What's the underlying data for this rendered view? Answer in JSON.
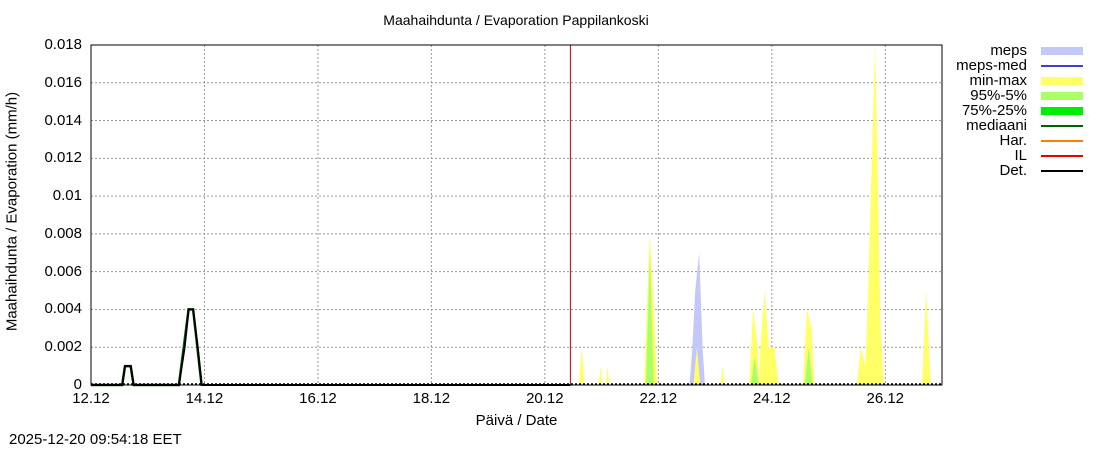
{
  "chart_data": {
    "type": "area",
    "title": "Maahaihdunta / Evaporation  Pappilankoski",
    "xlabel": "Päivä / Date",
    "ylabel": "Maahaihdunta / Evaporation (mm/h)",
    "ylim": [
      0,
      0.018
    ],
    "xlim_days": [
      12,
      27
    ],
    "grid": true,
    "legend_position": "right",
    "x_tick_labels": [
      "12.12",
      "14.12",
      "16.12",
      "18.12",
      "20.12",
      "22.12",
      "24.12",
      "26.12"
    ],
    "y_tick_labels": [
      "0",
      "0.002",
      "0.004",
      "0.006",
      "0.008",
      "0.01",
      "0.012",
      "0.014",
      "0.016",
      "0.018"
    ],
    "forecast_start_line": {
      "name": "IL",
      "x_day": 20.45,
      "color": "#cc0000"
    },
    "legend": [
      {
        "label": "meps",
        "color": "#c4c8f8",
        "kind": "area"
      },
      {
        "label": "meps-med",
        "color": "#4040d0",
        "kind": "line"
      },
      {
        "label": "min-max",
        "color": "#ffff66",
        "kind": "area"
      },
      {
        "label": "95%-5%",
        "color": "#aaff66",
        "kind": "area"
      },
      {
        "label": "75%-25%",
        "color": "#00ee00",
        "kind": "area"
      },
      {
        "label": "mediaani",
        "color": "#006400",
        "kind": "line"
      },
      {
        "label": "Har.",
        "color": "#ff8000",
        "kind": "line"
      },
      {
        "label": "IL",
        "color": "#ee0000",
        "kind": "line"
      },
      {
        "label": "Det.",
        "color": "#000000",
        "kind": "line"
      }
    ],
    "series": [
      {
        "name": "Det.",
        "points": [
          [
            12.0,
            0
          ],
          [
            12.55,
            0
          ],
          [
            12.6,
            0.001
          ],
          [
            12.7,
            0.001
          ],
          [
            12.75,
            0
          ],
          [
            13.55,
            0
          ],
          [
            13.65,
            0.002
          ],
          [
            13.72,
            0.004
          ],
          [
            13.8,
            0.004
          ],
          [
            13.88,
            0.002
          ],
          [
            13.95,
            0
          ],
          [
            20.45,
            0
          ]
        ]
      },
      {
        "name": "meps",
        "points": [
          [
            22.55,
            0
          ],
          [
            22.6,
            0.002
          ],
          [
            22.65,
            0.005
          ],
          [
            22.72,
            0.007
          ],
          [
            22.78,
            0.002
          ],
          [
            22.82,
            0
          ]
        ]
      },
      {
        "name": "min-max",
        "points": [
          [
            20.6,
            0
          ],
          [
            20.65,
            0.002
          ],
          [
            20.7,
            0
          ],
          [
            20.95,
            0
          ],
          [
            20.98,
            0.001
          ],
          [
            21.02,
            0
          ],
          [
            21.08,
            0
          ],
          [
            21.1,
            0.001
          ],
          [
            21.14,
            0
          ],
          [
            21.75,
            0
          ],
          [
            21.85,
            0.008
          ],
          [
            21.92,
            0.004
          ],
          [
            21.98,
            0
          ],
          [
            22.62,
            0
          ],
          [
            22.68,
            0.002
          ],
          [
            22.74,
            0
          ],
          [
            23.1,
            0
          ],
          [
            23.13,
            0.001
          ],
          [
            23.17,
            0
          ],
          [
            23.6,
            0
          ],
          [
            23.67,
            0.004
          ],
          [
            23.75,
            0.002
          ],
          [
            23.78,
            0
          ],
          [
            23.8,
            0.002
          ],
          [
            23.87,
            0.005
          ],
          [
            23.95,
            0.002
          ],
          [
            24.05,
            0.002
          ],
          [
            24.12,
            0
          ],
          [
            24.55,
            0
          ],
          [
            24.62,
            0.004
          ],
          [
            24.7,
            0.003
          ],
          [
            24.75,
            0
          ],
          [
            25.5,
            0
          ],
          [
            25.57,
            0.002
          ],
          [
            25.65,
            0.001
          ],
          [
            25.7,
            0.005
          ],
          [
            25.82,
            0.018
          ],
          [
            25.92,
            0.003
          ],
          [
            25.97,
            0
          ],
          [
            26.65,
            0
          ],
          [
            26.72,
            0.005
          ],
          [
            26.8,
            0
          ],
          [
            26.95,
            0
          ],
          [
            27.0,
            0.001
          ]
        ]
      },
      {
        "name": "95%-5%",
        "points": [
          [
            21.78,
            0
          ],
          [
            21.85,
            0.007
          ],
          [
            21.92,
            0
          ],
          [
            23.63,
            0
          ],
          [
            23.7,
            0.0015
          ],
          [
            23.77,
            0
          ],
          [
            24.58,
            0
          ],
          [
            24.65,
            0.002
          ],
          [
            24.72,
            0
          ]
        ]
      },
      {
        "name": "mediaani",
        "points": [
          [
            12.0,
            0
          ],
          [
            12.55,
            0
          ],
          [
            12.6,
            0.001
          ],
          [
            12.7,
            0.001
          ],
          [
            12.75,
            0
          ],
          [
            13.55,
            0
          ],
          [
            13.72,
            0.004
          ],
          [
            13.8,
            0.004
          ],
          [
            13.95,
            0
          ]
        ]
      }
    ]
  },
  "header": {
    "title": "Maahaihdunta / Evaporation  Pappilankoski"
  },
  "axes": {
    "xlabel": "Päivä / Date",
    "ylabel": "Maahaihdunta / Evaporation (mm/h)"
  },
  "footer": {
    "timestamp": "2025-12-20 09:54:18 EET"
  }
}
